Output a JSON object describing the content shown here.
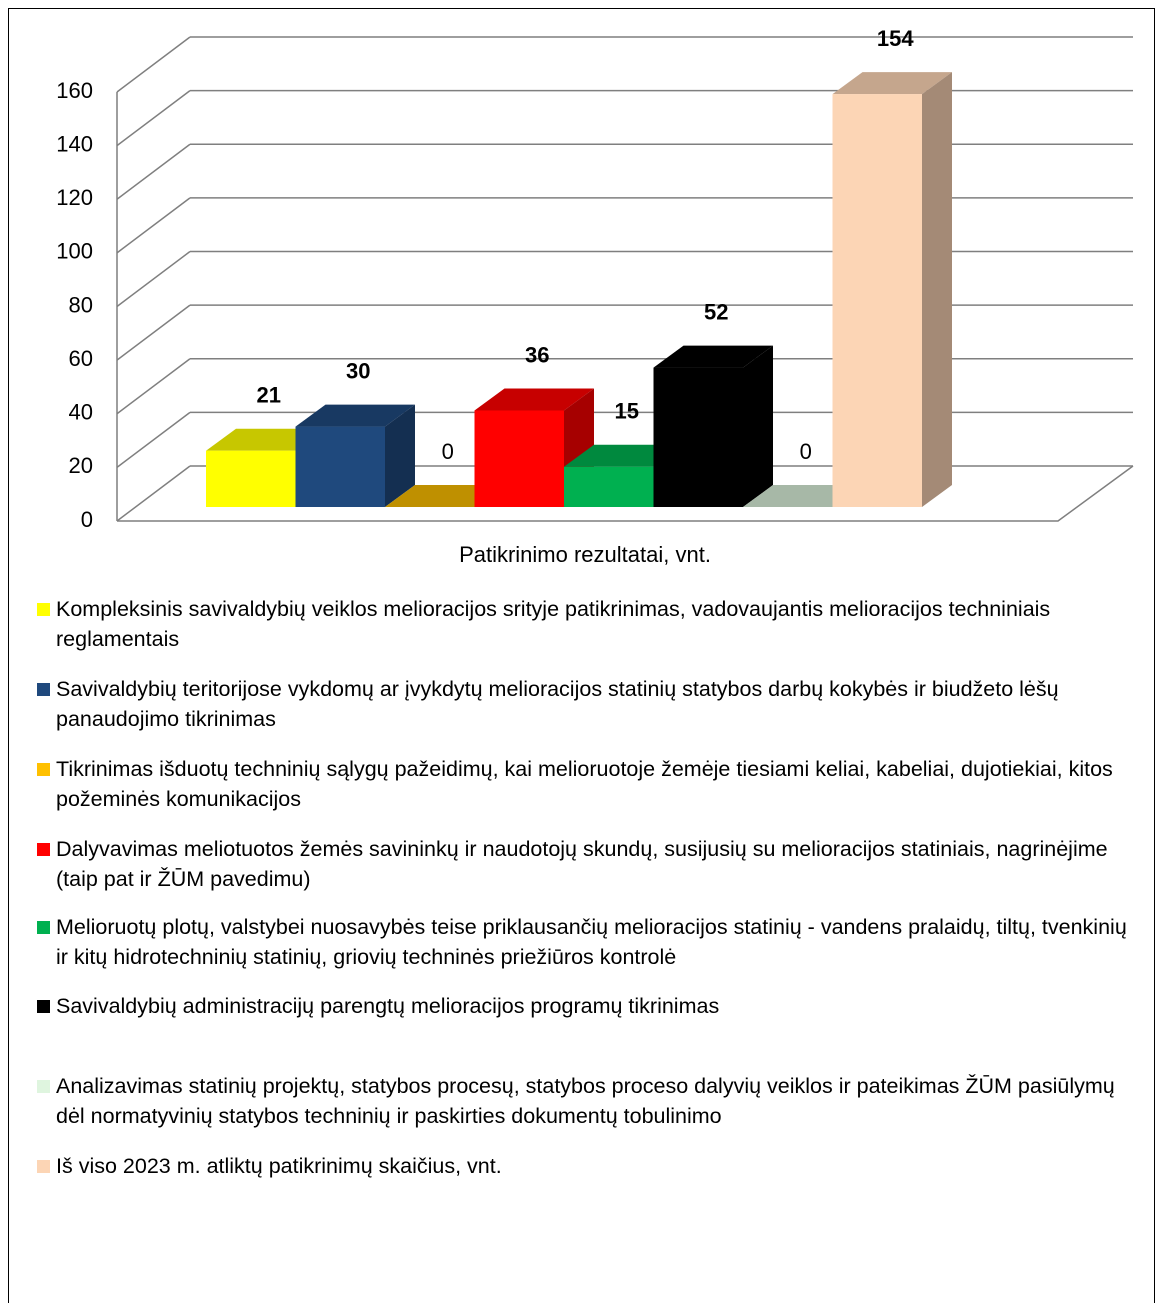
{
  "chart_data": {
    "type": "bar3d",
    "categories": [
      "Patikrinimo rezultatai, vnt."
    ],
    "series": [
      {
        "name": "Kompleksinis savivaldybių veiklos melioracijos srityje patikrinimas, vadovaujantis melioracijos techniniais reglamentais",
        "color": "#ffff00",
        "values": [
          21
        ]
      },
      {
        "name": "Savivaldybių teritorijose vykdomų ar įvykdytų melioracijos statinių statybos darbų kokybės ir biudžeto lėšų panaudojimo tikrinimas",
        "color": "#1f497d",
        "values": [
          30
        ]
      },
      {
        "name": "Tikrinimas išduotų techninių sąlygų pažeidimų, kai melioruotoje žemėje tiesiami keliai, kabeliai, dujotiekiai, kitos požeminės komunikacijos",
        "color": "#ffc000",
        "values": [
          0
        ]
      },
      {
        "name": "Dalyvavimas meliotuotos žemės savininkų ir naudotojų skundų, susijusių su melioracijos statiniais, nagrinėjime (taip pat ir ŽŪM pavedimu)",
        "color": "#ff0000",
        "values": [
          36
        ]
      },
      {
        "name": "Melioruotų plotų, valstybei nuosavybės teise priklausančių melioracijos statinių - vandens pralaidų, tiltų, tvenkinių ir kitų hidrotechninių statinių, griovių techninės priežiūros kontrolė",
        "color": "#00b050",
        "values": [
          15
        ]
      },
      {
        "name": "Savivaldybių administracijų parengtų melioracijos programų tikrinimas",
        "color": "#000000",
        "values": [
          52
        ]
      },
      {
        "name": "Analizavimas statinių projektų, statybos procesų, statybos proceso dalyvių veiklos ir pateikimas ŽŪM pasiūlymų dėl normatyvinių statybos techninių ir paskirties dokumentų tobulinimo",
        "color": "#dff5df",
        "values": [
          0
        ]
      },
      {
        "name": "Iš viso 2023 m.  atliktų patikrinimų skaičius, vnt.",
        "color": "#fcd5b5",
        "values": [
          154
        ]
      }
    ],
    "ylim": [
      0,
      160
    ],
    "yticks": [
      0,
      20,
      40,
      60,
      80,
      100,
      120,
      140,
      160
    ],
    "grid": true
  }
}
